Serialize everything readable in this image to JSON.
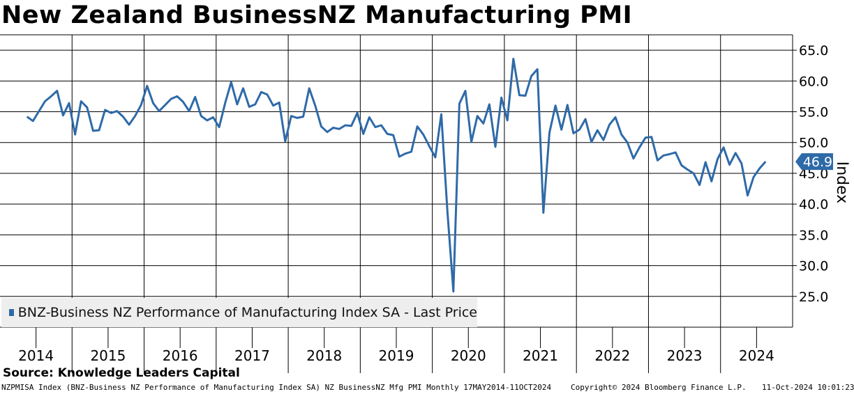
{
  "chart_data": {
    "type": "line",
    "title": "New Zealand BusinessNZ Manufacturing PMI",
    "ylabel": "Index",
    "ylim": [
      20,
      67.5
    ],
    "y_ticks": [
      25,
      30,
      35,
      40,
      45,
      50,
      55,
      60,
      65
    ],
    "y_tick_labels": [
      "25.0",
      "30.0",
      "35.0",
      "40.0",
      "45.0",
      "50.0",
      "55.0",
      "60.0",
      "65.0"
    ],
    "x_start": 2014.0,
    "x_end": 2025.0,
    "x_year_labels": [
      "2014",
      "2015",
      "2016",
      "2017",
      "2018",
      "2019",
      "2020",
      "2021",
      "2022",
      "2023",
      "2024"
    ],
    "legend_position": "bottom-left",
    "grid": true,
    "series": [
      {
        "name": "BNZ-Business NZ Performance of Manufacturing Index SA - Last Price",
        "color": "#2e6aa8",
        "last_value_label": "46.9",
        "start": 2014.375,
        "step": 0.0833333,
        "values": [
          54.2,
          53.5,
          55.1,
          56.7,
          57.5,
          58.4,
          54.4,
          56.4,
          51.3,
          56.7,
          55.7,
          51.9,
          52.0,
          55.3,
          54.8,
          55.1,
          54.2,
          52.9,
          54.3,
          56.1,
          59.2,
          56.4,
          55.1,
          56.1,
          57.1,
          57.5,
          56.6,
          55.1,
          57.4,
          54.3,
          53.6,
          54.1,
          52.5,
          56.4,
          59.8,
          56.2,
          58.8,
          55.8,
          56.2,
          58.2,
          57.8,
          56.0,
          56.5,
          50.2,
          54.3,
          54.0,
          54.2,
          58.8,
          56.0,
          52.6,
          51.7,
          52.4,
          52.2,
          52.8,
          52.7,
          54.8,
          51.4,
          54.1,
          52.5,
          52.8,
          51.4,
          51.2,
          47.7,
          48.2,
          48.5,
          52.6,
          51.3,
          49.4,
          47.6,
          54.6,
          38.9,
          25.8,
          56.3,
          58.4,
          50.1,
          54.3,
          53.1,
          56.2,
          49.3,
          57.3,
          53.6,
          63.6,
          57.7,
          57.6,
          60.8,
          61.9,
          38.6,
          51.6,
          56.0,
          52.1,
          56.1,
          51.5,
          52.1,
          53.8,
          50.1,
          52.0,
          50.4,
          52.9,
          54.1,
          51.3,
          50.0,
          47.4,
          49.2,
          50.8,
          50.9,
          47.1,
          47.9,
          48.1,
          48.4,
          46.3,
          45.6,
          45.0,
          43.1,
          46.8,
          43.7,
          47.3,
          49.2,
          46.4,
          48.3,
          46.6,
          41.4,
          44.4,
          45.8,
          46.9
        ]
      }
    ]
  },
  "source_text": "Source: Knowledge Leaders Capital",
  "footer": {
    "left": "NZPMISA Index (BNZ-Business NZ Performance of Manufacturing Index SA) NZ BusinessNZ Mfg PMI  Monthly 17MAY2014-11OCT2024",
    "copyright": "Copyright© 2024 Bloomberg Finance L.P.",
    "timestamp": "11-Oct-2024 10:01:23"
  }
}
